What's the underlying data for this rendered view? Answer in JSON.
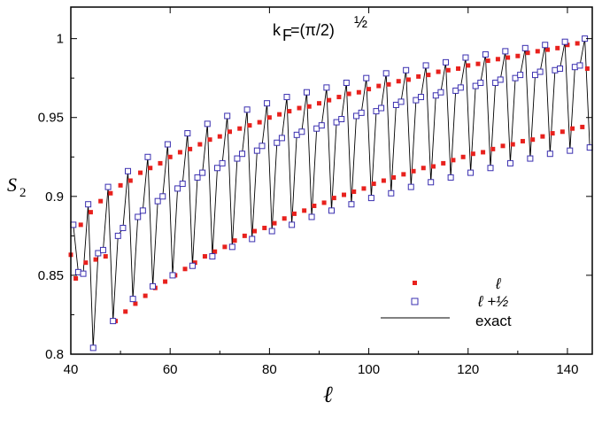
{
  "chart_data": {
    "type": "scatter",
    "annotation": "k",
    "annotation_sub": "F",
    "annotation_eq": "=(π/2)",
    "annotation_sup": "½",
    "xlabel": "ℓ",
    "ylabel": "S",
    "ylabel_sub": "2",
    "xlim": [
      40,
      145
    ],
    "ylim": [
      0.8,
      1.02
    ],
    "xticks": [
      40,
      60,
      80,
      100,
      120,
      140
    ],
    "yticks": [
      0.8,
      0.85,
      0.9,
      0.95,
      1.0
    ],
    "xtick_labels": [
      "40",
      "60",
      "80",
      "100",
      "120",
      "140"
    ],
    "ytick_labels": [
      "0.8",
      "0.85",
      "0.9",
      "0.95",
      "1"
    ],
    "legend_position": "bottom-right",
    "series": [
      {
        "name": "ℓ",
        "marker": "filled-square",
        "color": "#e8211d",
        "x": [
          40,
          41,
          42,
          43,
          44,
          45,
          46,
          47,
          48,
          49,
          50,
          51,
          52,
          53,
          54,
          55,
          56,
          57,
          58,
          59,
          60,
          61,
          62,
          63,
          64,
          65,
          66,
          67,
          68,
          69,
          70,
          71,
          72,
          73,
          74,
          75,
          76,
          77,
          78,
          79,
          80,
          81,
          82,
          83,
          84,
          85,
          86,
          87,
          88,
          89,
          90,
          91,
          92,
          93,
          94,
          95,
          96,
          97,
          98,
          99,
          100,
          101,
          102,
          103,
          104,
          105,
          106,
          107,
          108,
          109,
          110,
          111,
          112,
          113,
          114,
          115,
          116,
          117,
          118,
          119,
          120,
          121,
          122,
          123,
          124,
          125,
          126,
          127,
          128,
          129,
          130,
          131,
          132,
          133,
          134,
          135,
          136,
          137,
          138,
          139,
          140,
          141,
          142,
          143,
          144
        ],
        "y": [
          0.863,
          0.848,
          0.882,
          0.858,
          0.89,
          0.86,
          0.897,
          0.862,
          0.902,
          0.821,
          0.907,
          0.827,
          0.91,
          0.832,
          0.915,
          0.837,
          0.918,
          0.842,
          0.921,
          0.846,
          0.925,
          0.85,
          0.928,
          0.854,
          0.93,
          0.858,
          0.933,
          0.862,
          0.936,
          0.865,
          0.938,
          0.868,
          0.941,
          0.872,
          0.943,
          0.875,
          0.945,
          0.878,
          0.947,
          0.88,
          0.95,
          0.883,
          0.952,
          0.886,
          0.954,
          0.889,
          0.956,
          0.891,
          0.957,
          0.894,
          0.959,
          0.896,
          0.961,
          0.899,
          0.963,
          0.901,
          0.965,
          0.903,
          0.966,
          0.905,
          0.968,
          0.908,
          0.97,
          0.91,
          0.971,
          0.912,
          0.973,
          0.914,
          0.974,
          0.916,
          0.976,
          0.918,
          0.977,
          0.919,
          0.979,
          0.921,
          0.98,
          0.923,
          0.981,
          0.925,
          0.983,
          0.927,
          0.984,
          0.928,
          0.986,
          0.93,
          0.987,
          0.932,
          0.988,
          0.933,
          0.989,
          0.935,
          0.991,
          0.936,
          0.992,
          0.938,
          0.993,
          0.94,
          0.994,
          0.941,
          0.996,
          0.943,
          0.997,
          0.944,
          0.981
        ]
      },
      {
        "name": "ℓ +½",
        "marker": "open-square",
        "color": "#3a2fb0",
        "x": [
          40.5,
          41.5,
          42.5,
          43.5,
          44.5,
          45.5,
          46.5,
          47.5,
          48.5,
          49.5,
          50.5,
          51.5,
          52.5,
          53.5,
          54.5,
          55.5,
          56.5,
          57.5,
          58.5,
          59.5,
          60.5,
          61.5,
          62.5,
          63.5,
          64.5,
          65.5,
          66.5,
          67.5,
          68.5,
          69.5,
          70.5,
          71.5,
          72.5,
          73.5,
          74.5,
          75.5,
          76.5,
          77.5,
          78.5,
          79.5,
          80.5,
          81.5,
          82.5,
          83.5,
          84.5,
          85.5,
          86.5,
          87.5,
          88.5,
          89.5,
          90.5,
          91.5,
          92.5,
          93.5,
          94.5,
          95.5,
          96.5,
          97.5,
          98.5,
          99.5,
          100.5,
          101.5,
          102.5,
          103.5,
          104.5,
          105.5,
          106.5,
          107.5,
          108.5,
          109.5,
          110.5,
          111.5,
          112.5,
          113.5,
          114.5,
          115.5,
          116.5,
          117.5,
          118.5,
          119.5,
          120.5,
          121.5,
          122.5,
          123.5,
          124.5,
          125.5,
          126.5,
          127.5,
          128.5,
          129.5,
          130.5,
          131.5,
          132.5,
          133.5,
          134.5,
          135.5,
          136.5,
          137.5,
          138.5,
          139.5,
          140.5,
          141.5,
          142.5,
          143.5,
          144.5
        ],
        "y": [
          0.882,
          0.852,
          0.851,
          0.895,
          0.804,
          0.864,
          0.866,
          0.906,
          0.821,
          0.875,
          0.88,
          0.916,
          0.835,
          0.887,
          0.891,
          0.925,
          0.843,
          0.897,
          0.9,
          0.933,
          0.85,
          0.905,
          0.908,
          0.94,
          0.856,
          0.912,
          0.915,
          0.946,
          0.862,
          0.918,
          0.921,
          0.951,
          0.868,
          0.924,
          0.927,
          0.955,
          0.873,
          0.929,
          0.932,
          0.959,
          0.878,
          0.934,
          0.937,
          0.963,
          0.882,
          0.939,
          0.941,
          0.966,
          0.887,
          0.943,
          0.945,
          0.969,
          0.891,
          0.947,
          0.949,
          0.972,
          0.895,
          0.951,
          0.953,
          0.975,
          0.899,
          0.954,
          0.956,
          0.978,
          0.902,
          0.958,
          0.96,
          0.98,
          0.906,
          0.961,
          0.963,
          0.983,
          0.909,
          0.964,
          0.966,
          0.985,
          0.912,
          0.967,
          0.969,
          0.988,
          0.915,
          0.97,
          0.972,
          0.99,
          0.918,
          0.972,
          0.974,
          0.992,
          0.921,
          0.975,
          0.977,
          0.994,
          0.924,
          0.977,
          0.979,
          0.996,
          0.927,
          0.98,
          0.981,
          0.998,
          0.929,
          0.982,
          0.983,
          1.0,
          0.931
        ]
      },
      {
        "name": "exact",
        "marker": "line",
        "color": "#000000",
        "x": [
          40.5,
          41.5,
          42.5,
          43.5,
          44.5,
          45.5,
          46.5,
          47.5,
          48.5,
          49.5,
          50.5,
          51.5,
          52.5,
          53.5,
          54.5,
          55.5,
          56.5,
          57.5,
          58.5,
          59.5,
          60.5,
          61.5,
          62.5,
          63.5,
          64.5,
          65.5,
          66.5,
          67.5,
          68.5,
          69.5,
          70.5,
          71.5,
          72.5,
          73.5,
          74.5,
          75.5,
          76.5,
          77.5,
          78.5,
          79.5,
          80.5,
          81.5,
          82.5,
          83.5,
          84.5,
          85.5,
          86.5,
          87.5,
          88.5,
          89.5,
          90.5,
          91.5,
          92.5,
          93.5,
          94.5,
          95.5,
          96.5,
          97.5,
          98.5,
          99.5,
          100.5,
          101.5,
          102.5,
          103.5,
          104.5,
          105.5,
          106.5,
          107.5,
          108.5,
          109.5,
          110.5,
          111.5,
          112.5,
          113.5,
          114.5,
          115.5,
          116.5,
          117.5,
          118.5,
          119.5,
          120.5,
          121.5,
          122.5,
          123.5,
          124.5,
          125.5,
          126.5,
          127.5,
          128.5,
          129.5,
          130.5,
          131.5,
          132.5,
          133.5,
          134.5,
          135.5,
          136.5,
          137.5,
          138.5,
          139.5,
          140.5,
          141.5,
          142.5,
          143.5,
          144.5
        ],
        "y": [
          0.882,
          0.852,
          0.851,
          0.895,
          0.804,
          0.864,
          0.866,
          0.906,
          0.821,
          0.875,
          0.88,
          0.916,
          0.835,
          0.887,
          0.891,
          0.925,
          0.843,
          0.897,
          0.9,
          0.933,
          0.85,
          0.905,
          0.908,
          0.94,
          0.856,
          0.912,
          0.915,
          0.946,
          0.862,
          0.918,
          0.921,
          0.951,
          0.868,
          0.924,
          0.927,
          0.955,
          0.873,
          0.929,
          0.932,
          0.959,
          0.878,
          0.934,
          0.937,
          0.963,
          0.882,
          0.939,
          0.941,
          0.966,
          0.887,
          0.943,
          0.945,
          0.969,
          0.891,
          0.947,
          0.949,
          0.972,
          0.895,
          0.951,
          0.953,
          0.975,
          0.899,
          0.954,
          0.956,
          0.978,
          0.902,
          0.958,
          0.96,
          0.98,
          0.906,
          0.961,
          0.963,
          0.983,
          0.909,
          0.964,
          0.966,
          0.985,
          0.912,
          0.967,
          0.969,
          0.988,
          0.915,
          0.97,
          0.972,
          0.99,
          0.918,
          0.972,
          0.974,
          0.992,
          0.921,
          0.975,
          0.977,
          0.994,
          0.924,
          0.977,
          0.979,
          0.996,
          0.927,
          0.98,
          0.981,
          0.998,
          0.929,
          0.982,
          0.983,
          1.0,
          0.931
        ]
      }
    ]
  }
}
